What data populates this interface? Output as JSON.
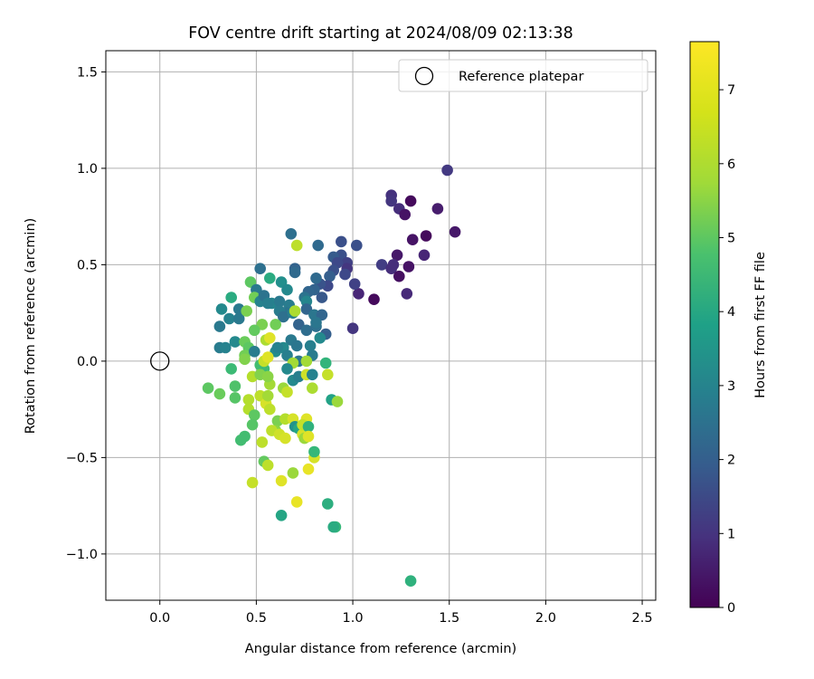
{
  "chart_data": {
    "type": "scatter",
    "title": "FOV centre drift starting at 2024/08/09 02:13:38",
    "xlabel": "Angular distance from reference (arcmin)",
    "ylabel": "Rotation from reference (arcmin)",
    "xlim": [
      -0.28,
      2.57
    ],
    "ylim": [
      -1.24,
      1.61
    ],
    "xticks": [
      0.0,
      0.5,
      1.0,
      1.5,
      2.0,
      2.5
    ],
    "xtick_labels": [
      "0.0",
      "0.5",
      "1.0",
      "1.5",
      "2.0",
      "2.5"
    ],
    "yticks": [
      -1.0,
      -0.5,
      0.0,
      0.5,
      1.0,
      1.5
    ],
    "ytick_labels": [
      "−1.0",
      "−0.5",
      "0.0",
      "0.5",
      "1.0",
      "1.5"
    ],
    "grid": true,
    "colormap": "viridis",
    "colorbar": {
      "label": "Hours from first FF file",
      "min": 0,
      "max": 7.65,
      "ticks": [
        0,
        1,
        2,
        3,
        4,
        5,
        6,
        7
      ],
      "tick_labels": [
        "0",
        "1",
        "2",
        "3",
        "4",
        "5",
        "6",
        "7"
      ]
    },
    "legend": {
      "position": "top-right",
      "entries": [
        {
          "label": "Reference platepar",
          "marker": "open-circle"
        }
      ]
    },
    "reference_point": {
      "x": 0.0,
      "y": 0.0
    },
    "points": [
      [
        1.49,
        0.99,
        1.3
      ],
      [
        1.2,
        0.86,
        1.1
      ],
      [
        1.2,
        0.83,
        1.2
      ],
      [
        1.3,
        0.83,
        0.2
      ],
      [
        1.24,
        0.79,
        1.0
      ],
      [
        1.44,
        0.79,
        0.6
      ],
      [
        1.27,
        0.76,
        0.4
      ],
      [
        1.53,
        0.67,
        0.5
      ],
      [
        1.38,
        0.65,
        0.2
      ],
      [
        1.31,
        0.63,
        0.4
      ],
      [
        1.23,
        0.55,
        0.5
      ],
      [
        1.37,
        0.55,
        0.8
      ],
      [
        1.21,
        0.5,
        1.0
      ],
      [
        1.15,
        0.5,
        1.4
      ],
      [
        1.29,
        0.49,
        0.4
      ],
      [
        1.2,
        0.48,
        1.0
      ],
      [
        1.24,
        0.44,
        0.3
      ],
      [
        1.28,
        0.35,
        0.9
      ],
      [
        1.11,
        0.32,
        0.2
      ],
      [
        1.0,
        0.17,
        1.2
      ],
      [
        1.03,
        0.35,
        0.8
      ],
      [
        1.01,
        0.4,
        1.5
      ],
      [
        1.02,
        0.6,
        1.9
      ],
      [
        0.94,
        0.62,
        1.9
      ],
      [
        0.94,
        0.55,
        1.9
      ],
      [
        0.97,
        0.51,
        1.5
      ],
      [
        0.97,
        0.48,
        1.2
      ],
      [
        0.9,
        0.54,
        2.2
      ],
      [
        0.92,
        0.51,
        1.7
      ],
      [
        0.96,
        0.45,
        1.7
      ],
      [
        0.9,
        0.47,
        1.9
      ],
      [
        0.88,
        0.44,
        2.3
      ],
      [
        0.87,
        0.39,
        1.7
      ],
      [
        0.83,
        0.4,
        2.0
      ],
      [
        0.81,
        0.43,
        2.6
      ],
      [
        0.8,
        0.37,
        2.4
      ],
      [
        0.84,
        0.33,
        2.1
      ],
      [
        0.77,
        0.36,
        2.5
      ],
      [
        0.75,
        0.33,
        2.9
      ],
      [
        0.76,
        0.31,
        3.5
      ],
      [
        0.7,
        0.48,
        2.4
      ],
      [
        0.7,
        0.46,
        2.6
      ],
      [
        0.68,
        0.66,
        2.8
      ],
      [
        0.82,
        0.6,
        2.6
      ],
      [
        0.71,
        0.6,
        6.9
      ],
      [
        0.52,
        0.48,
        2.8
      ],
      [
        0.57,
        0.43,
        4.7
      ],
      [
        0.47,
        0.41,
        5.7
      ],
      [
        0.5,
        0.37,
        3.1
      ],
      [
        0.49,
        0.33,
        6.0
      ],
      [
        0.52,
        0.31,
        3.4
      ],
      [
        0.54,
        0.34,
        2.9
      ],
      [
        0.58,
        0.3,
        3.5
      ],
      [
        0.56,
        0.3,
        3.3
      ],
      [
        0.63,
        0.41,
        3.8
      ],
      [
        0.66,
        0.37,
        3.6
      ],
      [
        0.62,
        0.31,
        3.1
      ],
      [
        0.67,
        0.29,
        3.2
      ],
      [
        0.66,
        0.25,
        2.9
      ],
      [
        0.62,
        0.26,
        3.2
      ],
      [
        0.64,
        0.23,
        2.8
      ],
      [
        0.69,
        0.25,
        3.3
      ],
      [
        0.7,
        0.26,
        6.7
      ],
      [
        0.72,
        0.19,
        2.4
      ],
      [
        0.76,
        0.27,
        2.5
      ],
      [
        0.8,
        0.24,
        3.0
      ],
      [
        0.84,
        0.24,
        2.5
      ],
      [
        0.81,
        0.18,
        2.8
      ],
      [
        0.86,
        0.14,
        2.3
      ],
      [
        0.81,
        0.2,
        3.0
      ],
      [
        0.83,
        0.12,
        3.6
      ],
      [
        0.76,
        0.16,
        2.7
      ],
      [
        0.68,
        0.11,
        3.1
      ],
      [
        0.64,
        0.07,
        3.6
      ],
      [
        0.6,
        0.05,
        3.7
      ],
      [
        0.66,
        0.03,
        3.3
      ],
      [
        0.61,
        0.07,
        3.4
      ],
      [
        0.71,
        0.08,
        3.0
      ],
      [
        0.78,
        0.08,
        3.3
      ],
      [
        0.79,
        0.03,
        3.2
      ],
      [
        0.72,
        0.0,
        3.0
      ],
      [
        0.53,
        0.19,
        6.1
      ],
      [
        0.49,
        0.16,
        5.8
      ],
      [
        0.55,
        0.11,
        6.7
      ],
      [
        0.57,
        0.12,
        7.3
      ],
      [
        0.6,
        0.19,
        6.0
      ],
      [
        0.37,
        0.33,
        4.7
      ],
      [
        0.31,
        0.18,
        3.1
      ],
      [
        0.32,
        0.27,
        3.6
      ],
      [
        0.36,
        0.22,
        3.4
      ],
      [
        0.41,
        0.22,
        3.1
      ],
      [
        0.41,
        0.27,
        3.1
      ],
      [
        0.45,
        0.26,
        6.1
      ],
      [
        0.31,
        0.07,
        3.2
      ],
      [
        0.34,
        0.07,
        3.4
      ],
      [
        0.39,
        0.1,
        3.6
      ],
      [
        0.44,
        0.1,
        5.9
      ],
      [
        0.46,
        0.07,
        5.7
      ],
      [
        0.44,
        0.03,
        6.0
      ],
      [
        0.49,
        0.05,
        3.2
      ],
      [
        0.44,
        0.01,
        6.2
      ],
      [
        0.37,
        -0.04,
        5.2
      ],
      [
        0.52,
        -0.02,
        5.3
      ],
      [
        0.54,
        -0.04,
        5.2
      ],
      [
        0.54,
        0.0,
        7.0
      ],
      [
        0.56,
        0.02,
        7.3
      ],
      [
        0.48,
        -0.08,
        6.8
      ],
      [
        0.52,
        -0.07,
        6.2
      ],
      [
        0.57,
        -0.12,
        6.6
      ],
      [
        0.56,
        -0.08,
        6.3
      ],
      [
        0.25,
        -0.14,
        5.7
      ],
      [
        0.31,
        -0.17,
        5.9
      ],
      [
        0.39,
        -0.13,
        5.5
      ],
      [
        0.39,
        -0.19,
        5.6
      ],
      [
        0.46,
        -0.2,
        6.8
      ],
      [
        0.46,
        -0.25,
        6.8
      ],
      [
        0.52,
        -0.18,
        6.9
      ],
      [
        0.55,
        -0.22,
        7.2
      ],
      [
        0.57,
        -0.25,
        6.9
      ],
      [
        0.56,
        -0.18,
        6.6
      ],
      [
        0.64,
        -0.14,
        6.5
      ],
      [
        0.66,
        -0.16,
        7.0
      ],
      [
        0.69,
        -0.1,
        3.6
      ],
      [
        0.72,
        -0.08,
        3.3
      ],
      [
        0.76,
        -0.07,
        7.1
      ],
      [
        0.79,
        -0.07,
        3.4
      ],
      [
        0.76,
        0.0,
        6.6
      ],
      [
        0.79,
        -0.14,
        6.7
      ],
      [
        0.69,
        -0.01,
        6.6
      ],
      [
        0.66,
        -0.04,
        3.6
      ],
      [
        0.86,
        -0.01,
        5.0
      ],
      [
        0.87,
        -0.07,
        7.0
      ],
      [
        0.89,
        -0.2,
        4.4
      ],
      [
        0.92,
        -0.21,
        6.5
      ],
      [
        0.61,
        -0.31,
        6.1
      ],
      [
        0.6,
        -0.36,
        6.3
      ],
      [
        0.58,
        -0.36,
        6.9
      ],
      [
        0.62,
        -0.38,
        7.1
      ],
      [
        0.65,
        -0.3,
        6.8
      ],
      [
        0.69,
        -0.3,
        7.2
      ],
      [
        0.7,
        -0.34,
        3.9
      ],
      [
        0.72,
        -0.35,
        4.5
      ],
      [
        0.74,
        -0.38,
        7.2
      ],
      [
        0.76,
        -0.3,
        7.3
      ],
      [
        0.74,
        -0.33,
        7.0
      ],
      [
        0.75,
        -0.4,
        6.5
      ],
      [
        0.77,
        -0.34,
        4.9
      ],
      [
        0.77,
        -0.39,
        7.3
      ],
      [
        0.49,
        -0.28,
        5.7
      ],
      [
        0.48,
        -0.33,
        5.6
      ],
      [
        0.44,
        -0.39,
        5.3
      ],
      [
        0.42,
        -0.41,
        5.3
      ],
      [
        0.53,
        -0.42,
        6.9
      ],
      [
        0.65,
        -0.4,
        7.2
      ],
      [
        0.54,
        -0.52,
        5.8
      ],
      [
        0.56,
        -0.54,
        6.9
      ],
      [
        0.48,
        -0.63,
        7.0
      ],
      [
        0.69,
        -0.58,
        6.5
      ],
      [
        0.63,
        -0.62,
        7.3
      ],
      [
        0.77,
        -0.56,
        7.4
      ],
      [
        0.8,
        -0.5,
        7.2
      ],
      [
        0.8,
        -0.47,
        5.1
      ],
      [
        0.71,
        -0.73,
        7.4
      ],
      [
        0.87,
        -0.74,
        4.8
      ],
      [
        0.63,
        -0.8,
        4.5
      ],
      [
        0.91,
        -0.86,
        5.1
      ],
      [
        0.9,
        -0.86,
        4.7
      ],
      [
        1.3,
        -1.14,
        4.9
      ]
    ]
  }
}
